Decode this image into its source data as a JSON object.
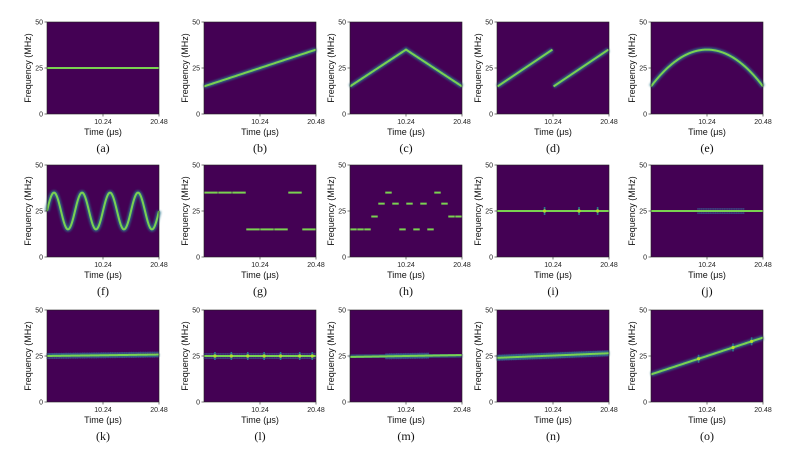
{
  "chart_data": {
    "type": "heatmap",
    "layout": {
      "rows": 3,
      "cols": 5
    },
    "background_color": "#440154",
    "line_color": "#7ad151",
    "line_glow_color": "#2a788e",
    "shared_axes": {
      "xlabel": "Time (μs)",
      "ylabel": "Frequency (MHz)",
      "xlim": [
        0,
        20.48
      ],
      "ylim": [
        0,
        50
      ],
      "xticks": [
        10.24,
        20.48
      ],
      "yticks": [
        0,
        25,
        50
      ],
      "xtick_labels": [
        "10.24",
        "20.48"
      ],
      "ytick_labels": [
        "0",
        "25",
        "50"
      ]
    },
    "panels": [
      {
        "caption": "(a)",
        "kind": "constant",
        "f": 25
      },
      {
        "caption": "(b)",
        "kind": "linear",
        "f0": 15,
        "f1": 35
      },
      {
        "caption": "(c)",
        "kind": "triangle",
        "f_low": 15,
        "f_peak": 35
      },
      {
        "caption": "(d)",
        "kind": "sawtooth",
        "segments": [
          {
            "t0": 0,
            "t1": 10.24,
            "f0": 15,
            "f1": 35
          },
          {
            "t0": 10.24,
            "t1": 20.48,
            "f0": 15,
            "f1": 35
          }
        ]
      },
      {
        "caption": "(e)",
        "kind": "parabola",
        "f_edge": 15,
        "f_peak": 35
      },
      {
        "caption": "(f)",
        "kind": "sine",
        "center": 25,
        "amplitude": 10,
        "cycles": 4
      },
      {
        "caption": "(g)",
        "kind": "hop",
        "levels": [
          35,
          35,
          35,
          15,
          15,
          15,
          35,
          15
        ],
        "slot": 2.56
      },
      {
        "caption": "(h)",
        "kind": "hop",
        "levels": [
          15,
          15,
          15,
          22,
          29,
          35,
          29,
          15,
          29,
          15,
          29,
          15,
          35,
          29,
          22,
          22
        ],
        "slot": 1.28
      },
      {
        "caption": "(i)",
        "kind": "constant_marks",
        "f": 25,
        "marks": [
          8.7,
          15.0,
          18.4
        ]
      },
      {
        "caption": "(j)",
        "kind": "constant_band",
        "f": 25,
        "band": [
          8.5,
          17.0
        ]
      },
      {
        "caption": "(k)",
        "kind": "linear_band",
        "f0": 25,
        "f1": 25.8,
        "band": [
          0,
          20.48
        ]
      },
      {
        "caption": "(l)",
        "kind": "constant_marks_band",
        "f": 25,
        "marks": [
          2.0,
          5.0,
          8.0,
          11.0,
          14.0,
          17.5,
          19.8
        ]
      },
      {
        "caption": "(m)",
        "kind": "linear_band",
        "f0": 24.5,
        "f1": 25.5,
        "band": [
          6.5,
          14.5
        ]
      },
      {
        "caption": "(n)",
        "kind": "linear_band",
        "f0": 24,
        "f1": 26.5,
        "band": [
          0,
          20.48
        ]
      },
      {
        "caption": "(o)",
        "kind": "linear_marks",
        "f0": 15,
        "f1": 35,
        "marks": [
          8.7,
          15.0,
          18.4
        ]
      }
    ]
  }
}
